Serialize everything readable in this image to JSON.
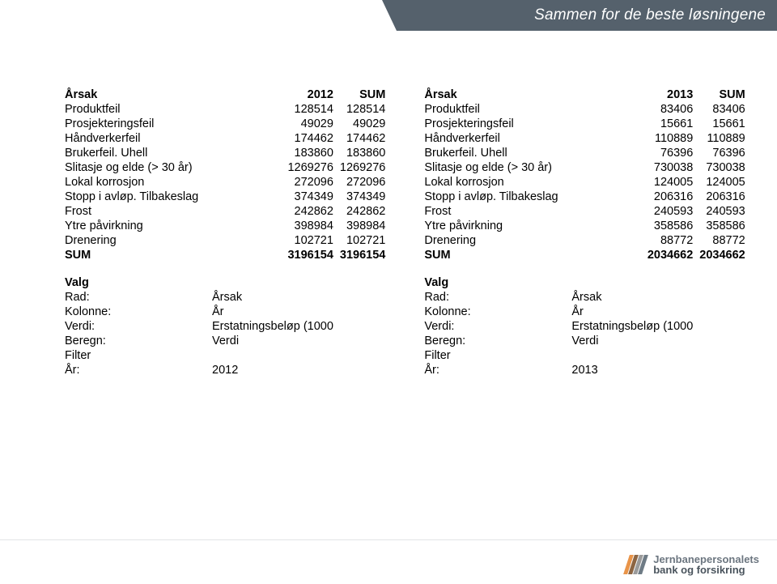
{
  "banner": {
    "tagline": "Sammen for de beste løsningene"
  },
  "colors": {
    "banner_bg": "#55616c",
    "banner_text": "#ffffff",
    "text": "#000000",
    "logo_slab_a": "#e99449",
    "logo_slab_b": "#8c6543",
    "logo_slab_c": "#9b9b9b",
    "logo_slab_d": "#6e7b85"
  },
  "typography": {
    "base_fontsize": 14.5,
    "banner_fontsize": 19,
    "font_family": "Arial"
  },
  "tables": {
    "left": {
      "header": {
        "c0": "Årsak",
        "c1": "2012",
        "c2": "SUM"
      },
      "rows": [
        {
          "label": "Produktfeil",
          "v1": "128514",
          "v2": "128514"
        },
        {
          "label": "Prosjekteringsfeil",
          "v1": "49029",
          "v2": "49029"
        },
        {
          "label": "Håndverkerfeil",
          "v1": "174462",
          "v2": "174462"
        },
        {
          "label": "Brukerfeil. Uhell",
          "v1": "183860",
          "v2": "183860"
        },
        {
          "label": "Slitasje og elde (> 30 år)",
          "v1": "1269276",
          "v2": "1269276"
        },
        {
          "label": "Lokal korrosjon",
          "v1": "272096",
          "v2": "272096"
        },
        {
          "label": "Stopp i avløp. Tilbakeslag",
          "v1": "374349",
          "v2": "374349"
        },
        {
          "label": "Frost",
          "v1": "242862",
          "v2": "242862"
        },
        {
          "label": "Ytre påvirkning",
          "v1": "398984",
          "v2": "398984"
        },
        {
          "label": "Drenering",
          "v1": "102721",
          "v2": "102721"
        }
      ],
      "sum": {
        "label": "SUM",
        "v1": "3196154",
        "v2": "3196154"
      },
      "meta": {
        "valg": "Valg",
        "rad_label": "Rad:",
        "rad_val": "Årsak",
        "kolonne_label": "Kolonne:",
        "kolonne_val": "År",
        "verdi_label": "Verdi:",
        "verdi_val": "Erstatningsbeløp (1000",
        "beregn_label": "Beregn:",
        "beregn_val": "Verdi",
        "filter_label": "Filter",
        "aar_label": "År:",
        "aar_val": "2012"
      }
    },
    "right": {
      "header": {
        "c0": "Årsak",
        "c1": "2013",
        "c2": "SUM"
      },
      "rows": [
        {
          "label": "Produktfeil",
          "v1": "83406",
          "v2": "83406"
        },
        {
          "label": "Prosjekteringsfeil",
          "v1": "15661",
          "v2": "15661"
        },
        {
          "label": "Håndverkerfeil",
          "v1": "110889",
          "v2": "110889"
        },
        {
          "label": "Brukerfeil. Uhell",
          "v1": "76396",
          "v2": "76396"
        },
        {
          "label": "Slitasje og elde (> 30 år)",
          "v1": "730038",
          "v2": "730038"
        },
        {
          "label": "Lokal korrosjon",
          "v1": "124005",
          "v2": "124005"
        },
        {
          "label": "Stopp i avløp. Tilbakeslag",
          "v1": "206316",
          "v2": "206316"
        },
        {
          "label": "Frost",
          "v1": "240593",
          "v2": "240593"
        },
        {
          "label": "Ytre påvirkning",
          "v1": "358586",
          "v2": "358586"
        },
        {
          "label": "Drenering",
          "v1": "88772",
          "v2": "88772"
        }
      ],
      "sum": {
        "label": "SUM",
        "v1": "2034662",
        "v2": "2034662"
      },
      "meta": {
        "valg": "Valg",
        "rad_label": "Rad:",
        "rad_val": "Årsak",
        "kolonne_label": "Kolonne:",
        "kolonne_val": "År",
        "verdi_label": "Verdi:",
        "verdi_val": "Erstatningsbeløp (1000",
        "beregn_label": "Beregn:",
        "beregn_val": "Verdi",
        "filter_label": "Filter",
        "aar_label": "År:",
        "aar_val": "2013"
      }
    }
  },
  "logo": {
    "line1": "Jernbanepersonalets",
    "line2": "bank og forsikring"
  }
}
